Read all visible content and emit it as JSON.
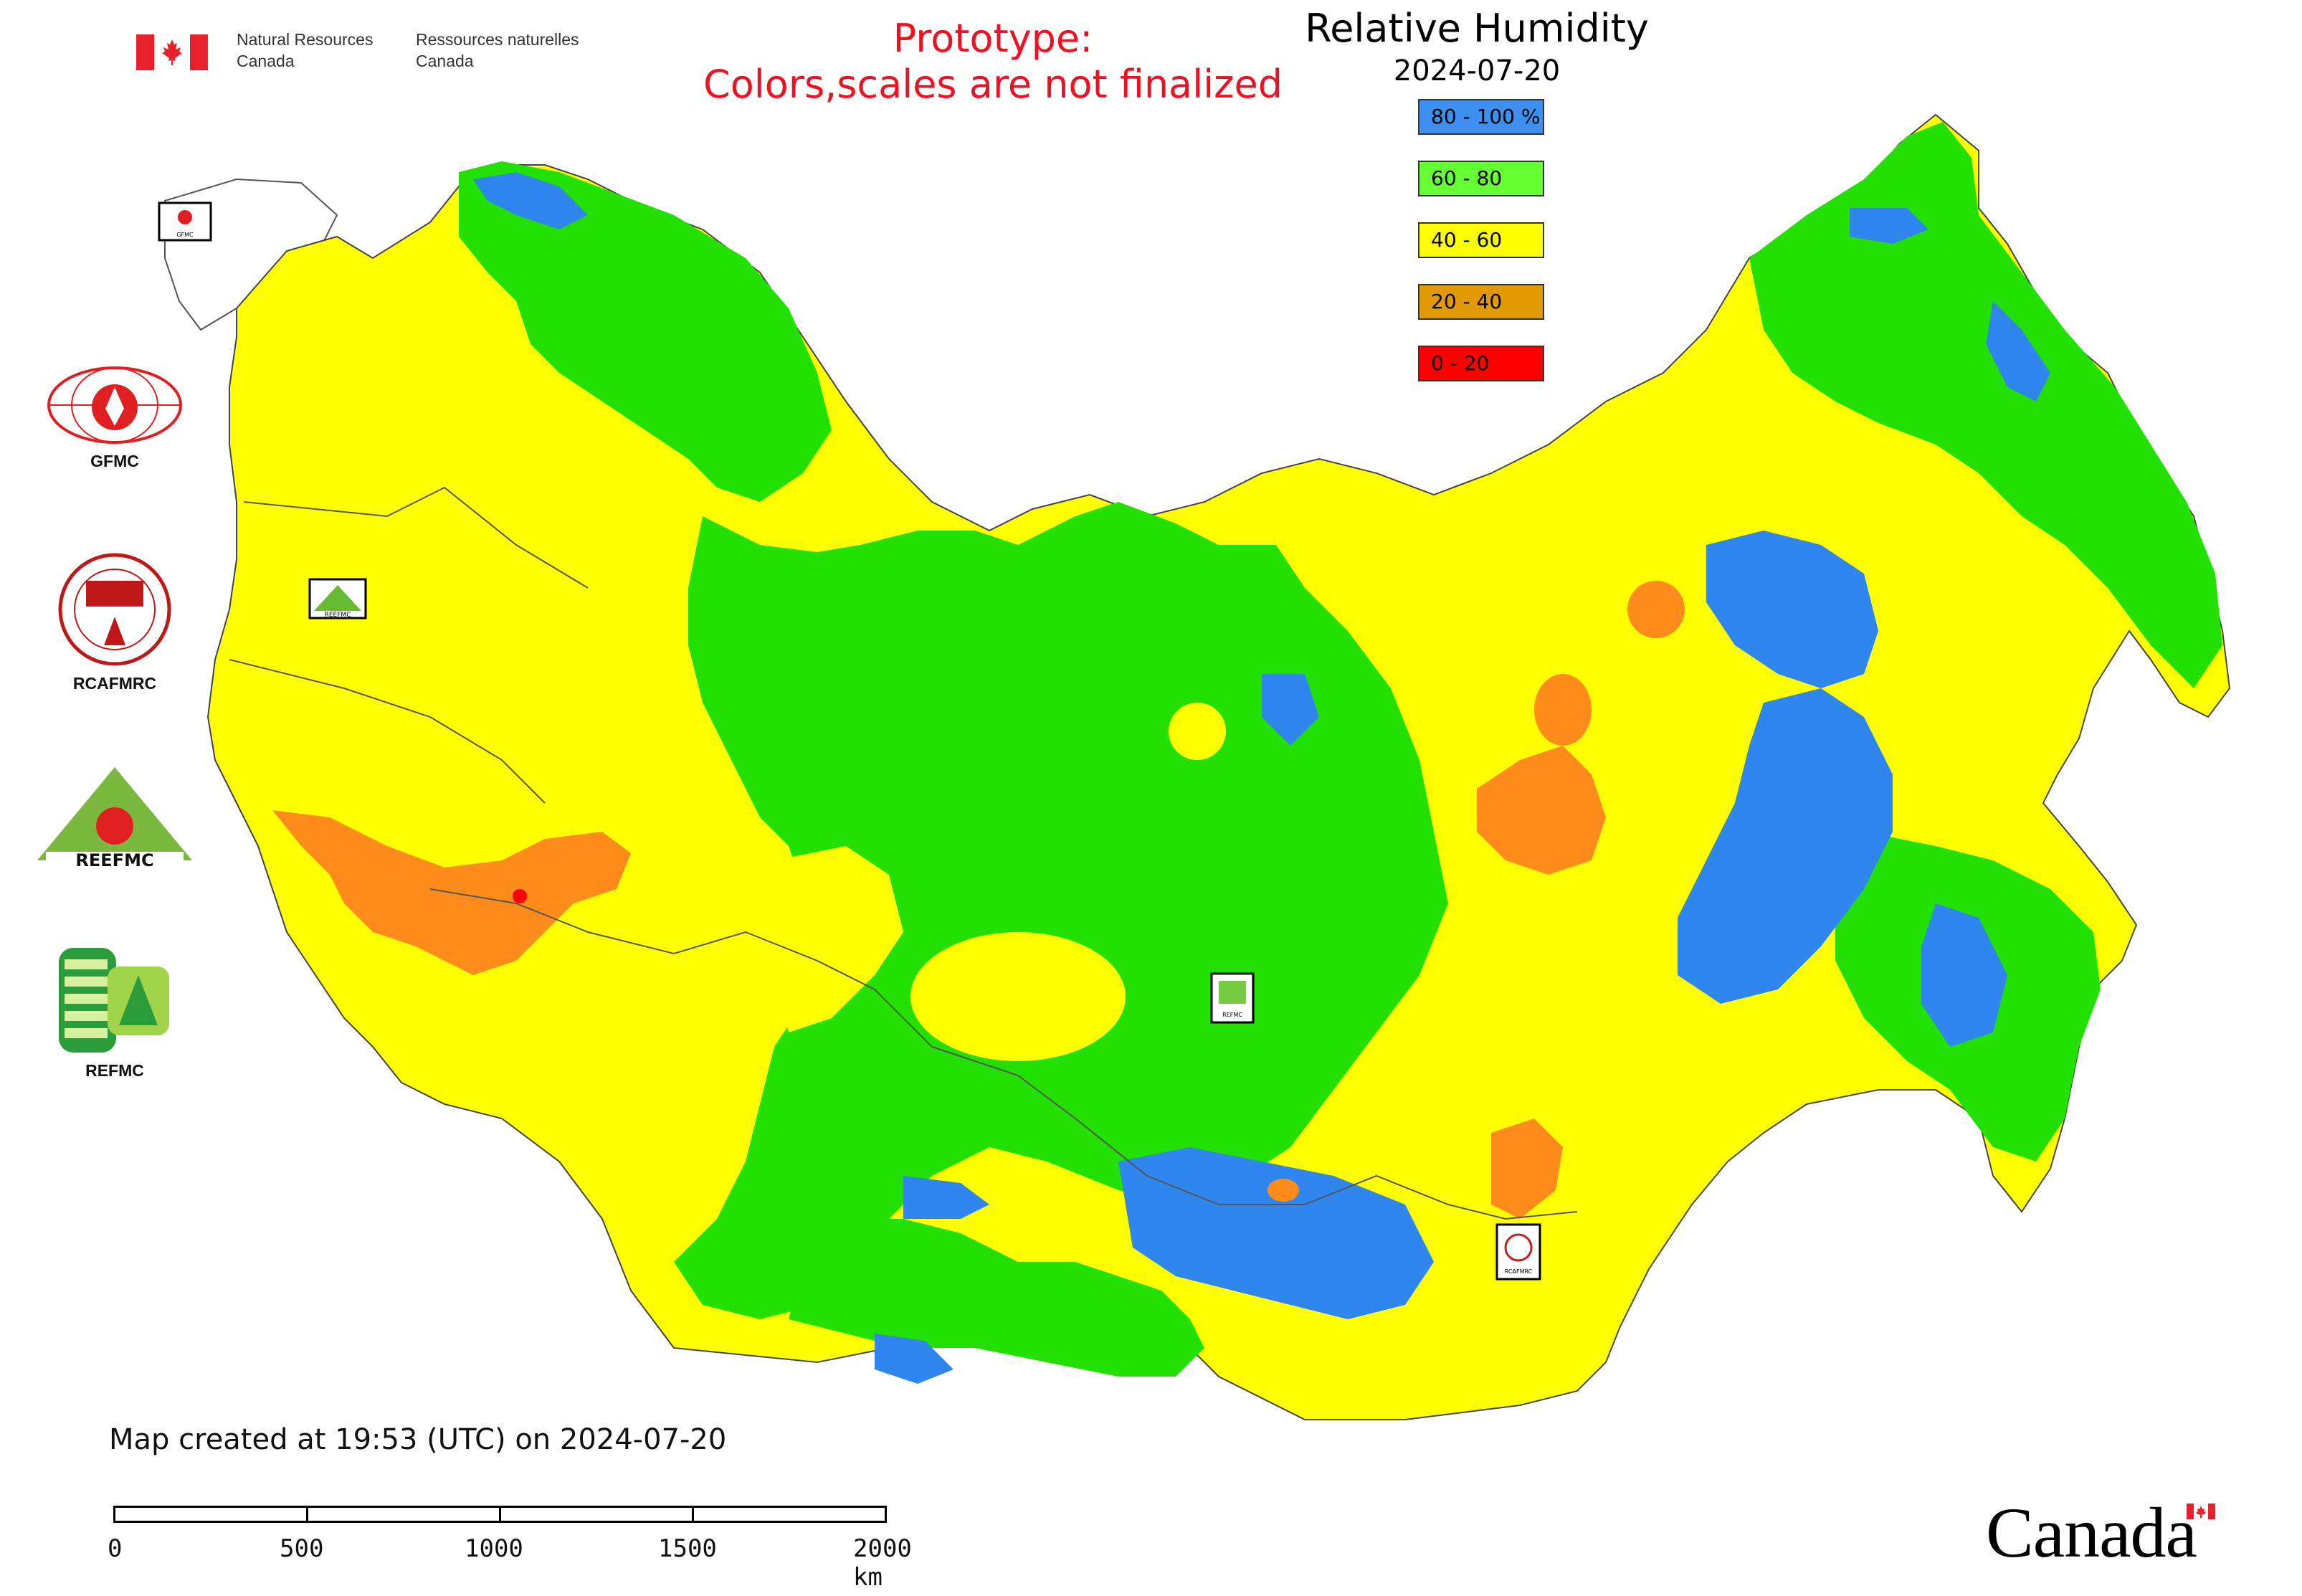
{
  "header": {
    "sig_en_line1": "Natural Resources",
    "sig_en_line2": "Canada",
    "sig_fr_line1": "Ressources naturelles",
    "sig_fr_line2": "Canada",
    "prototype_line1": "Prototype:",
    "prototype_line2": "Colors,scales are not finalized"
  },
  "legend": {
    "title": "Relative Humidity",
    "date": "2024-07-20",
    "items": [
      {
        "label": "80 - 100 %",
        "color": "#3d8ff0"
      },
      {
        "label": "60 - 80",
        "color": "#66ff33"
      },
      {
        "label": "40 - 60",
        "color": "#ffff00"
      },
      {
        "label": "20 - 40",
        "color": "#e09a00"
      },
      {
        "label": "0 - 20",
        "color": "#ff0000"
      }
    ]
  },
  "partners": [
    {
      "label": "GFMC",
      "icon": "gfmc-logo"
    },
    {
      "label": "RCAFMRC",
      "icon": "rcafmrc-logo"
    },
    {
      "label": "",
      "icon": "reefmc-logo",
      "wordmark": "REEFMC"
    },
    {
      "label": "REFMC",
      "icon": "refmc-logo"
    }
  ],
  "map_markers": {
    "gfmc": "GFMC",
    "reefmc": "REEFMC",
    "refmc": "REFMC",
    "rcafmrc": "RCAFMRC"
  },
  "footer": {
    "created_note": "Map created at 19:53 (UTC) on 2024-07-20"
  },
  "scale_bar": {
    "labels": [
      "0",
      "500",
      "1000",
      "1500",
      "2000 km"
    ]
  },
  "wordmark": "Canada",
  "colors": {
    "blue": "#2f86ee",
    "green": "#22e000",
    "yellow": "#ffff00",
    "orange": "#ff8c1a",
    "red": "#ff0000",
    "white": "#ffffff",
    "border": "#444444"
  }
}
